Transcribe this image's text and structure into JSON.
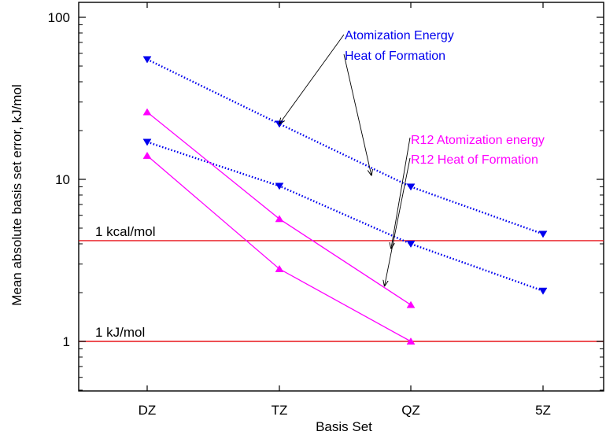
{
  "chart_data": {
    "type": "line",
    "title": "",
    "xlabel": "Basis Set",
    "ylabel": "Mean absolute basis set error, kJ/mol",
    "yscale": "log",
    "ylim": [
      0.5,
      100
    ],
    "yticks": [
      "1",
      "10",
      "100"
    ],
    "categories": [
      "DZ",
      "TZ",
      "QZ",
      "5Z"
    ],
    "grid": false,
    "legend": "none",
    "series": [
      {
        "name": "Atomization Energy",
        "color": "#0000ee",
        "style": "dotted",
        "marker": "triangle-down",
        "values": [
          55,
          22,
          9,
          4.6
        ]
      },
      {
        "name": "Heat of Formation",
        "color": "#0000ee",
        "style": "dotted",
        "marker": "triangle-down",
        "values": [
          17,
          9.1,
          4.0,
          2.05
        ]
      },
      {
        "name": "R12 Atomization energy",
        "color": "#ff00ff",
        "style": "solid",
        "marker": "triangle-up",
        "values": [
          26,
          5.7,
          1.68,
          null
        ]
      },
      {
        "name": "R12 Heat of Formation",
        "color": "#ff00ff",
        "style": "solid",
        "marker": "triangle-up",
        "values": [
          14,
          2.8,
          1.0,
          null
        ]
      }
    ],
    "reference_lines": [
      {
        "label": "1 kcal/mol",
        "value": 4.184,
        "color": "#e8151b"
      },
      {
        "label": "1 kJ/mol",
        "value": 1.0,
        "color": "#e8151b"
      }
    ],
    "annotations": [
      {
        "text": "Atomization Energy",
        "color": "#0000ee",
        "arrow_to": {
          "x": "TZ",
          "y": 22
        }
      },
      {
        "text": "Heat of Formation",
        "color": "#0000ee",
        "arrow_to": {
          "x": 1.7,
          "y": 10.6
        }
      },
      {
        "text": "R12 Atomization energy",
        "color": "#ff00ff",
        "arrow_to": {
          "x": 1.85,
          "y": 3.75
        }
      },
      {
        "text": "R12 Heat of Formation",
        "color": "#ff00ff",
        "arrow_to": {
          "x": 1.8,
          "y": 2.2
        }
      }
    ]
  }
}
